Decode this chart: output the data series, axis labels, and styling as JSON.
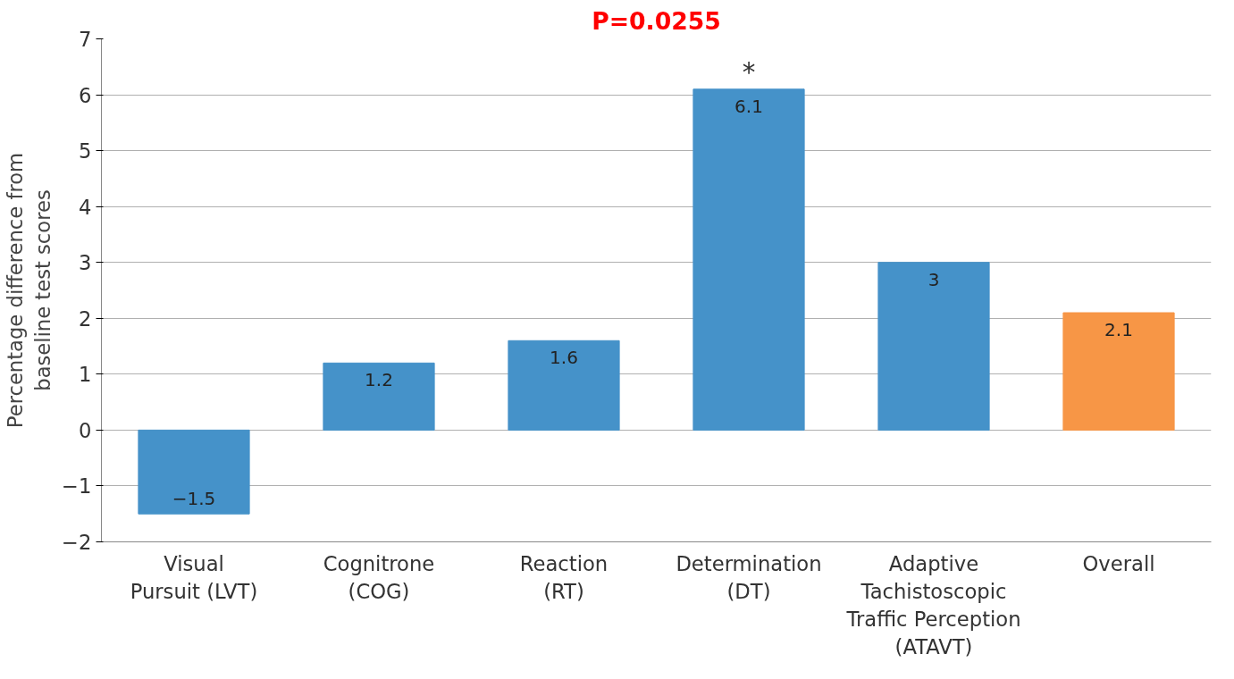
{
  "chart_data": {
    "type": "bar",
    "title": "P=0.0255",
    "ylabel": "Percentage difference from\nbaseline test scores",
    "categories": [
      "Visual\nPursuit (LVT)",
      "Cognitrone\n(COG)",
      "Reaction\n(RT)",
      "Determination\n(DT)",
      "Adaptive\nTachistoscopic\nTraffic Perception\n(ATAVT)",
      "Overall"
    ],
    "values": [
      -1.5,
      1.2,
      1.6,
      6.1,
      3,
      2.1
    ],
    "colors": [
      "#4592c9",
      "#4592c9",
      "#4592c9",
      "#4592c9",
      "#4592c9",
      "#f79646"
    ],
    "ylim": [
      -2,
      7
    ],
    "yticks": [
      -2,
      -1,
      0,
      1,
      2,
      3,
      4,
      5,
      6,
      7
    ],
    "grid": "y",
    "data_labels": true,
    "annotations": [
      {
        "text": "*",
        "x": "Determination\n(DT)",
        "y": 6.1
      }
    ]
  }
}
